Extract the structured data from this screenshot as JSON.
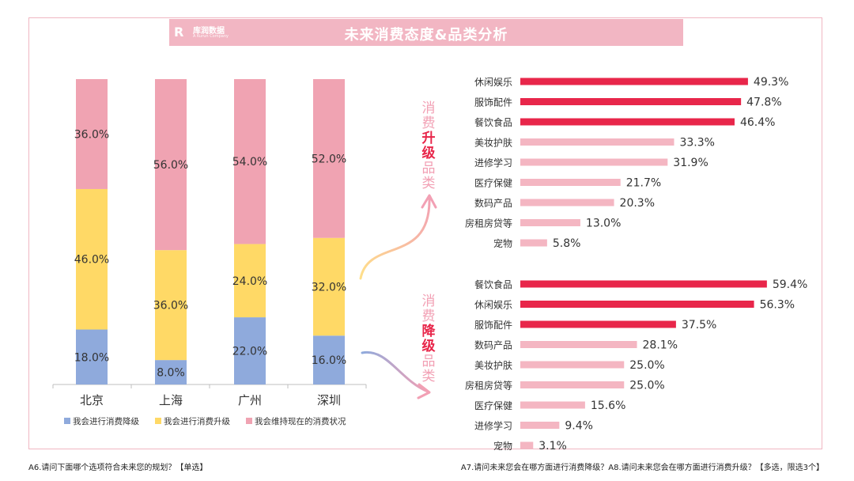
{
  "header": {
    "brand_name": "库润数据",
    "brand_sub": "A Kurun Company",
    "title": "未来消费态度&品类分析"
  },
  "colors": {
    "downgrade": "#8faadc",
    "upgrade": "#ffd966",
    "maintain": "#f0a3b2",
    "bar_strong": "#e8264a",
    "bar_light": "#f4b6c2",
    "banner": "#f2b6c3"
  },
  "chart_data": [
    {
      "type": "bar",
      "stacked": true,
      "orientation": "vertical",
      "categories": [
        "北京",
        "上海",
        "广州",
        "深圳"
      ],
      "series": [
        {
          "name": "我会进行消费降级",
          "values": [
            18.0,
            8.0,
            22.0,
            16.0
          ],
          "labels": [
            "18.0%",
            "8.0%",
            "22.0%",
            "16.0%"
          ]
        },
        {
          "name": "我会进行消费升级",
          "values": [
            46.0,
            36.0,
            24.0,
            32.0
          ],
          "labels": [
            "46.0%",
            "36.0%",
            "24.0%",
            "32.0%"
          ]
        },
        {
          "name": "我会维持现在的消费状况",
          "values": [
            36.0,
            56.0,
            54.0,
            52.0
          ],
          "labels": [
            "36.0%",
            "56.0%",
            "54.0%",
            "52.0%"
          ]
        }
      ],
      "ylim": [
        0,
        100
      ],
      "legend": "bottom"
    },
    {
      "type": "bar",
      "orientation": "horizontal",
      "title": "消费升级品类",
      "categories": [
        "休闲娱乐",
        "服饰配件",
        "餐饮食品",
        "美妆护肤",
        "进修学习",
        "医疗保健",
        "数码产品",
        "房租房贷等",
        "宠物"
      ],
      "values": [
        49.3,
        47.8,
        46.4,
        33.3,
        31.9,
        21.7,
        20.3,
        13.0,
        5.8
      ],
      "labels": [
        "49.3%",
        "47.8%",
        "46.4%",
        "33.3%",
        "31.9%",
        "21.7%",
        "20.3%",
        "13.0%",
        "5.8%"
      ],
      "highlight_top": 3
    },
    {
      "type": "bar",
      "orientation": "horizontal",
      "title": "消费降级品类",
      "categories": [
        "餐饮食品",
        "休闲娱乐",
        "服饰配件",
        "数码产品",
        "美妆护肤",
        "房租房贷等",
        "医疗保健",
        "进修学习",
        "宠物"
      ],
      "values": [
        59.4,
        56.3,
        37.5,
        28.1,
        25.0,
        25.0,
        15.6,
        9.4,
        3.1
      ],
      "labels": [
        "59.4%",
        "56.3%",
        "37.5%",
        "28.1%",
        "25.0%",
        "25.0%",
        "15.6%",
        "9.4%",
        "3.1%"
      ],
      "highlight_top": 3
    }
  ],
  "panel_labels": {
    "upgrade": [
      "消",
      "费",
      "升",
      "级",
      "品",
      "类"
    ],
    "downgrade": [
      "消",
      "费",
      "降",
      "级",
      "品",
      "类"
    ]
  },
  "notes": {
    "left": "A6.请问下面哪个选项符合未来您的规划？【单选】",
    "right": "A7.请问未来您会在哪方面进行消费降级？A8.请问未来您会在哪方面进行消费升级？【多选，限选3个】"
  }
}
